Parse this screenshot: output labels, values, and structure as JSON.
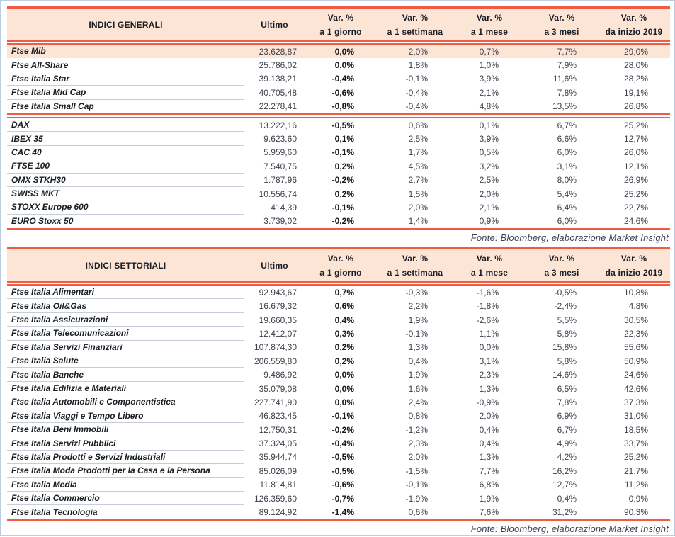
{
  "colors": {
    "accent_red": "#ee5c43",
    "header_bg": "#fce5d5",
    "highlight_row_bg": "#fce5d5",
    "page_border": "#bccde2"
  },
  "header_labels": {
    "ultimo": "Ultimo",
    "var": "Var. %",
    "periods": [
      "a 1 giorno",
      "a 1 settimana",
      "a 1 mese",
      "a 3 mesi",
      "da inizio 2019"
    ]
  },
  "source_note": "Fonte: Bloomberg, elaborazione Market Insight",
  "tables": [
    {
      "title": "INDICI GENERALI",
      "sections": [
        {
          "rows": [
            {
              "name": "Ftse Mib",
              "ultimo": "23.628,87",
              "var_1d": "0,0%",
              "var_1w": "2,0%",
              "var_1m": "0,7%",
              "var_3m": "7,7%",
              "var_ytd": "29,0%",
              "highlight": true
            },
            {
              "name": "Ftse All-Share",
              "ultimo": "25.786,02",
              "var_1d": "0,0%",
              "var_1w": "1,8%",
              "var_1m": "1,0%",
              "var_3m": "7,9%",
              "var_ytd": "28,0%"
            },
            {
              "name": "Ftse Italia Star",
              "ultimo": "39.138,21",
              "var_1d": "-0,4%",
              "var_1w": "-0,1%",
              "var_1m": "3,9%",
              "var_3m": "11,6%",
              "var_ytd": "28,2%"
            },
            {
              "name": "Ftse Italia Mid Cap",
              "ultimo": "40.705,48",
              "var_1d": "-0,6%",
              "var_1w": "-0,4%",
              "var_1m": "2,1%",
              "var_3m": "7,8%",
              "var_ytd": "19,1%"
            },
            {
              "name": "Ftse Italia Small Cap",
              "ultimo": "22.278,41",
              "var_1d": "-0,8%",
              "var_1w": "-0,4%",
              "var_1m": "4,8%",
              "var_3m": "13,5%",
              "var_ytd": "26,8%"
            }
          ]
        },
        {
          "rows": [
            {
              "name": "DAX",
              "ultimo": "13.222,16",
              "var_1d": "-0,5%",
              "var_1w": "0,6%",
              "var_1m": "0,1%",
              "var_3m": "6,7%",
              "var_ytd": "25,2%"
            },
            {
              "name": "IBEX 35",
              "ultimo": "9.623,60",
              "var_1d": "0,1%",
              "var_1w": "2,5%",
              "var_1m": "3,9%",
              "var_3m": "6,6%",
              "var_ytd": "12,7%"
            },
            {
              "name": "CAC 40",
              "ultimo": "5.959,60",
              "var_1d": "-0,1%",
              "var_1w": "1,7%",
              "var_1m": "0,5%",
              "var_3m": "6,0%",
              "var_ytd": "26,0%"
            },
            {
              "name": "FTSE 100",
              "ultimo": "7.540,75",
              "var_1d": "0,2%",
              "var_1w": "4,5%",
              "var_1m": "3,2%",
              "var_3m": "3,1%",
              "var_ytd": "12,1%"
            },
            {
              "name": "OMX STKH30",
              "ultimo": "1.787,96",
              "var_1d": "-0,2%",
              "var_1w": "2,7%",
              "var_1m": "2,5%",
              "var_3m": "8,0%",
              "var_ytd": "26,9%"
            },
            {
              "name": "SWISS MKT",
              "ultimo": "10.556,74",
              "var_1d": "0,2%",
              "var_1w": "1,5%",
              "var_1m": "2,0%",
              "var_3m": "5,4%",
              "var_ytd": "25,2%"
            },
            {
              "name": "STOXX Europe 600",
              "ultimo": "414,39",
              "var_1d": "-0,1%",
              "var_1w": "2,0%",
              "var_1m": "2,1%",
              "var_3m": "6,4%",
              "var_ytd": "22,7%"
            },
            {
              "name": "EURO Stoxx 50",
              "ultimo": "3.739,02",
              "var_1d": "-0,2%",
              "var_1w": "1,4%",
              "var_1m": "0,9%",
              "var_3m": "6,0%",
              "var_ytd": "24,6%"
            }
          ]
        }
      ]
    },
    {
      "title": "INDICI SETTORIALI",
      "sections": [
        {
          "rows": [
            {
              "name": "Ftse Italia Alimentari",
              "ultimo": "92.943,67",
              "var_1d": "0,7%",
              "var_1w": "-0,3%",
              "var_1m": "-1,6%",
              "var_3m": "-0,5%",
              "var_ytd": "10,8%"
            },
            {
              "name": "Ftse Italia Oil&Gas",
              "ultimo": "16.679,32",
              "var_1d": "0,6%",
              "var_1w": "2,2%",
              "var_1m": "-1,8%",
              "var_3m": "-2,4%",
              "var_ytd": "4,8%"
            },
            {
              "name": "Ftse Italia Assicurazioni",
              "ultimo": "19.660,35",
              "var_1d": "0,4%",
              "var_1w": "1,9%",
              "var_1m": "-2,6%",
              "var_3m": "5,5%",
              "var_ytd": "30,5%"
            },
            {
              "name": "Ftse Italia Telecomunicazioni",
              "ultimo": "12.412,07",
              "var_1d": "0,3%",
              "var_1w": "-0,1%",
              "var_1m": "1,1%",
              "var_3m": "5,8%",
              "var_ytd": "22,3%"
            },
            {
              "name": "Ftse Italia Servizi Finanziari",
              "ultimo": "107.874,30",
              "var_1d": "0,2%",
              "var_1w": "1,3%",
              "var_1m": "0,0%",
              "var_3m": "15,8%",
              "var_ytd": "55,6%"
            },
            {
              "name": "Ftse Italia Salute",
              "ultimo": "206.559,80",
              "var_1d": "0,2%",
              "var_1w": "0,4%",
              "var_1m": "3,1%",
              "var_3m": "5,8%",
              "var_ytd": "50,9%"
            },
            {
              "name": "Ftse Italia Banche",
              "ultimo": "9.486,92",
              "var_1d": "0,0%",
              "var_1w": "1,9%",
              "var_1m": "2,3%",
              "var_3m": "14,6%",
              "var_ytd": "24,6%"
            },
            {
              "name": "Ftse Italia Edilizia e Materiali",
              "ultimo": "35.079,08",
              "var_1d": "0,0%",
              "var_1w": "1,6%",
              "var_1m": "1,3%",
              "var_3m": "6,5%",
              "var_ytd": "42,6%"
            },
            {
              "name": "Ftse Italia Automobili e Componentistica",
              "ultimo": "227.741,90",
              "var_1d": "0,0%",
              "var_1w": "2,4%",
              "var_1m": "-0,9%",
              "var_3m": "7,8%",
              "var_ytd": "37,3%"
            },
            {
              "name": "Ftse Italia Viaggi e Tempo Libero",
              "ultimo": "46.823,45",
              "var_1d": "-0,1%",
              "var_1w": "0,8%",
              "var_1m": "2,0%",
              "var_3m": "6,9%",
              "var_ytd": "31,0%"
            },
            {
              "name": "Ftse Italia Beni Immobili",
              "ultimo": "12.750,31",
              "var_1d": "-0,2%",
              "var_1w": "-1,2%",
              "var_1m": "0,4%",
              "var_3m": "6,7%",
              "var_ytd": "18,5%"
            },
            {
              "name": "Ftse Italia Servizi Pubblici",
              "ultimo": "37.324,05",
              "var_1d": "-0,4%",
              "var_1w": "2,3%",
              "var_1m": "0,4%",
              "var_3m": "4,9%",
              "var_ytd": "33,7%"
            },
            {
              "name": "Ftse Italia Prodotti e Servizi Industriali",
              "ultimo": "35.944,74",
              "var_1d": "-0,5%",
              "var_1w": "2,0%",
              "var_1m": "1,3%",
              "var_3m": "4,2%",
              "var_ytd": "25,2%"
            },
            {
              "name": "Ftse Italia Moda Prodotti per la Casa e la Persona",
              "ultimo": "85.026,09",
              "var_1d": "-0,5%",
              "var_1w": "-1,5%",
              "var_1m": "7,7%",
              "var_3m": "16,2%",
              "var_ytd": "21,7%"
            },
            {
              "name": "Ftse Italia Media",
              "ultimo": "11.814,81",
              "var_1d": "-0,6%",
              "var_1w": "-0,1%",
              "var_1m": "6,8%",
              "var_3m": "12,7%",
              "var_ytd": "11,2%"
            },
            {
              "name": "Ftse Italia Commercio",
              "ultimo": "126.359,60",
              "var_1d": "-0,7%",
              "var_1w": "-1,9%",
              "var_1m": "1,9%",
              "var_3m": "0,4%",
              "var_ytd": "0,9%"
            },
            {
              "name": "Ftse Italia Tecnologia",
              "ultimo": "89.124,92",
              "var_1d": "-1,4%",
              "var_1w": "0,6%",
              "var_1m": "7,6%",
              "var_3m": "31,2%",
              "var_ytd": "90,3%"
            }
          ]
        }
      ]
    }
  ]
}
